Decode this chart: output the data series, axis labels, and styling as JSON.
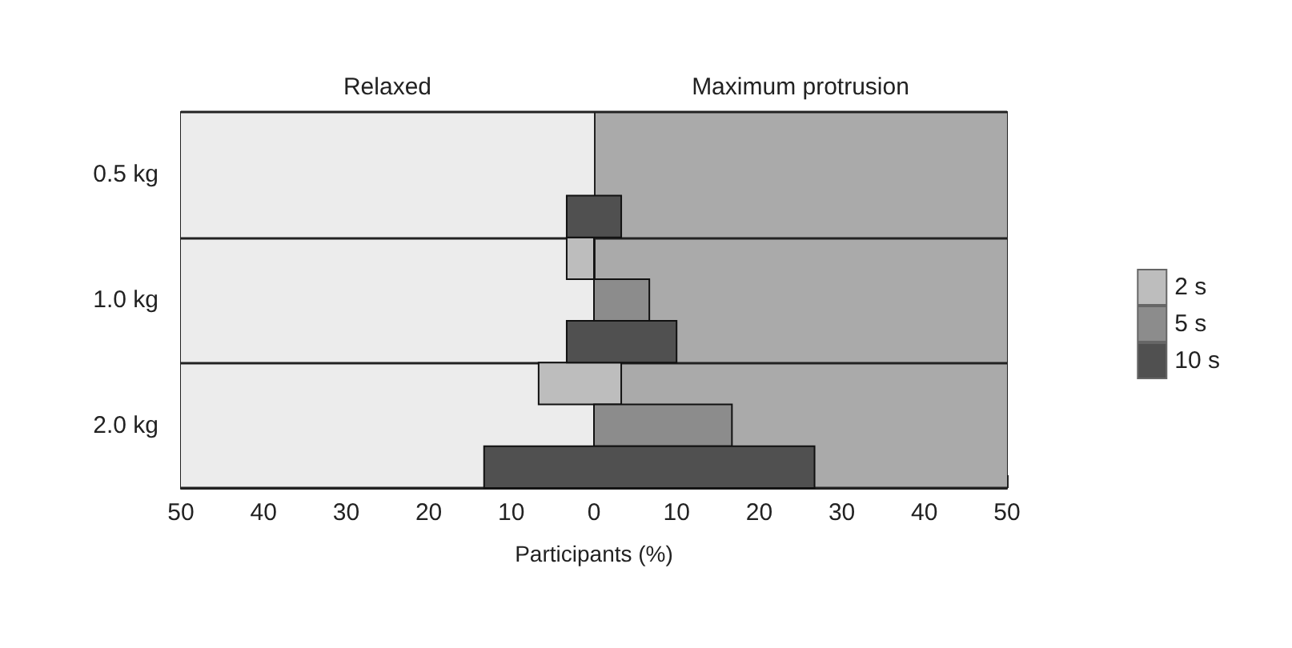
{
  "chart_data": {
    "type": "bar",
    "orientation": "horizontal",
    "xlabel": "Participants (%)",
    "categories": [
      "0.5 kg",
      "1.0 kg",
      "2.0 kg"
    ],
    "series": [
      {
        "name": "2 s",
        "color": "#bdbdbd",
        "base": [
          null,
          -3.3,
          -6.7
        ],
        "values": [
          null,
          3.3,
          10
        ]
      },
      {
        "name": "5 s",
        "color": "#8c8c8c",
        "base": [
          null,
          0,
          0
        ],
        "values": [
          null,
          6.7,
          16.7
        ]
      },
      {
        "name": "10 s",
        "color": "#505050",
        "base": [
          -3.3,
          -3.3,
          -13.3
        ],
        "values": [
          6.6,
          13.3,
          40
        ]
      }
    ],
    "xlim": [
      -50,
      50
    ],
    "xticks": [
      {
        "value": -50,
        "label": "50"
      },
      {
        "value": -40,
        "label": "40"
      },
      {
        "value": -30,
        "label": "30"
      },
      {
        "value": -20,
        "label": "20"
      },
      {
        "value": -10,
        "label": "10"
      },
      0,
      10,
      20,
      30,
      40,
      50
    ],
    "bands": [
      {
        "axis": "x",
        "from": -50,
        "to": 0,
        "label": "Relaxed",
        "color": "#ececec"
      },
      {
        "axis": "x",
        "from": 0,
        "to": 50,
        "label": "Maximum protrusion",
        "color": "#aaaaaa"
      }
    ],
    "grid": "y",
    "legend": "right"
  }
}
